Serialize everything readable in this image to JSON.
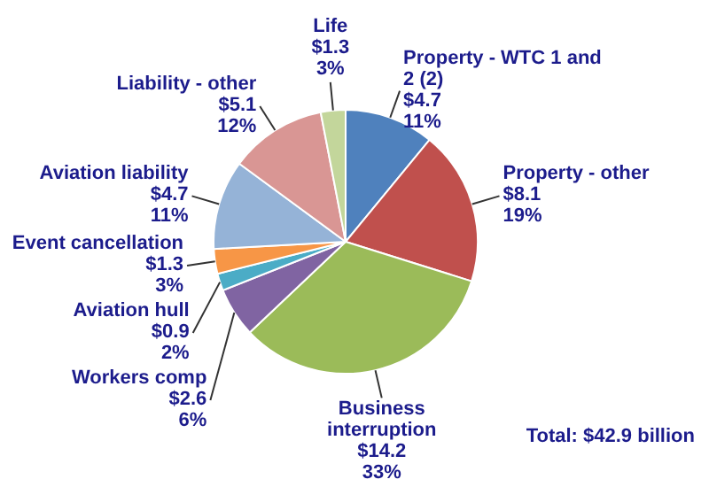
{
  "chart_data": {
    "type": "pie",
    "categories": [
      "Property - WTC 1 and 2 (2)",
      "Property - other",
      "Business interruption",
      "Workers comp",
      "Aviation hull",
      "Event cancellation",
      "Aviation liability",
      "Liability - other",
      "Life"
    ],
    "values": [
      4.7,
      8.1,
      14.2,
      2.6,
      0.9,
      1.3,
      4.7,
      5.1,
      1.3
    ],
    "value_labels": [
      "$4.7 11%",
      "$8.1 19%",
      "$14.2 33%",
      "$2.6 6%",
      "$0.9 2%",
      "$1.3 3%",
      "$4.7 11%",
      "$5.1 12%",
      "$1.3 3%"
    ],
    "colors": [
      "#4f81bd",
      "#c0504d",
      "#9bbb59",
      "#8064a2",
      "#4bacc6",
      "#f79646",
      "#95b3d7",
      "#d99694",
      "#c3d69b"
    ],
    "annotations": [
      "Total: $42.9 billion"
    ],
    "legend": false
  }
}
